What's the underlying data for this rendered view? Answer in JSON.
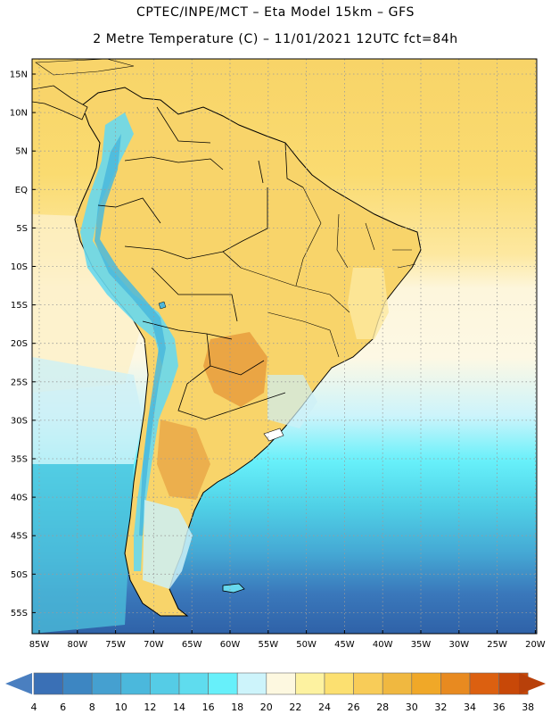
{
  "header": {
    "line1": "CPTEC/INPE/MCT –  Eta Model 15km – GFS",
    "line2": "2 Metre Temperature (C) – 11/01/2021 12UTC fct=84h"
  },
  "map": {
    "lat_labels": [
      "15N",
      "10N",
      "5N",
      "EQ",
      "5S",
      "10S",
      "15S",
      "20S",
      "25S",
      "30S",
      "35S",
      "40S",
      "45S",
      "50S",
      "55S"
    ],
    "lon_labels": [
      "85W",
      "80W",
      "75W",
      "70W",
      "65W",
      "60W",
      "55W",
      "50W",
      "45W",
      "40W",
      "35W",
      "30W",
      "25W",
      "20W"
    ],
    "region": "South America"
  },
  "colorbar": {
    "labels": [
      "4",
      "6",
      "8",
      "10",
      "12",
      "14",
      "16",
      "18",
      "20",
      "22",
      "24",
      "26",
      "28",
      "30",
      "32",
      "34",
      "36",
      "38"
    ],
    "low_color": "#4a7fc0",
    "high_color": "#b8400a",
    "colors": [
      "#3a70b6",
      "#3d86c2",
      "#45a0d0",
      "#4bb8dc",
      "#55cce6",
      "#5fdcee",
      "#67f0fa",
      "#cdf4fb",
      "#fdf8e0",
      "#fdf2a0",
      "#fce070",
      "#f8cc58",
      "#f0b840",
      "#f0a828",
      "#e88a20",
      "#dc6010",
      "#c84808"
    ]
  }
}
